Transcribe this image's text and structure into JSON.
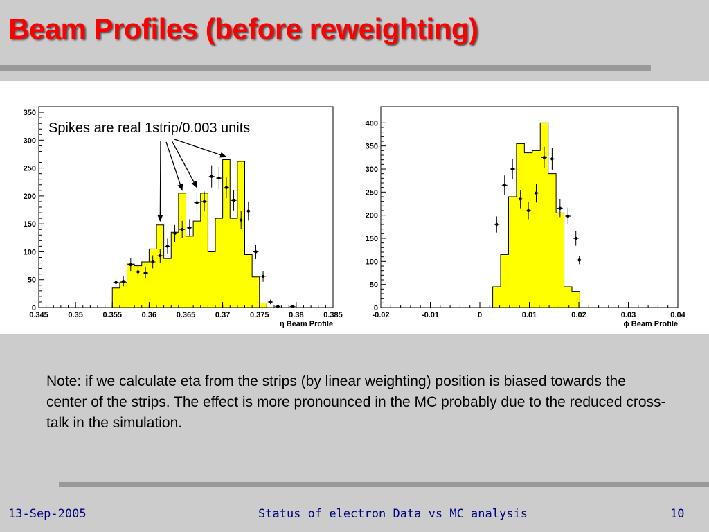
{
  "slide": {
    "title": "Beam Profiles (before reweighting)",
    "note": "Note: if we calculate eta from the strips (by linear weighting) position is biased towards the center of the strips. The effect is more pronounced in the MC probably due to the reduced cross-talk in the simulation.",
    "footer": {
      "date": "13-Sep-2005",
      "title": "Status of electron Data vs MC analysis",
      "page": "10"
    }
  },
  "colors": {
    "title": "#ff0000",
    "histogram_fill": "#ffff00",
    "footer": "#000080",
    "background": "#cccccc"
  },
  "chart_data": [
    {
      "type": "bar",
      "xlabel": "η Beam Profile",
      "annotation": "Spikes are real 1strip/0.003 units",
      "xlim": [
        0.345,
        0.385
      ],
      "ylim": [
        0,
        360
      ],
      "xticks": [
        "0.345",
        "0.35",
        "0.355",
        "0.36",
        "0.365",
        "0.37",
        "0.375",
        "0.38",
        "0.385"
      ],
      "yticks": [
        "0",
        "50",
        "100",
        "150",
        "200",
        "250",
        "300",
        "350"
      ],
      "histogram": {
        "bin_width": 0.001,
        "bin_edges_start": 0.355,
        "values": [
          35,
          45,
          78,
          75,
          82,
          105,
          148,
          88,
          135,
          205,
          128,
          155,
          205,
          100,
          160,
          265,
          160,
          262,
          95,
          55,
          8,
          0,
          0,
          0,
          0
        ]
      },
      "points": {
        "x": [
          0.3555,
          0.3565,
          0.3575,
          0.3585,
          0.3595,
          0.3605,
          0.3615,
          0.3625,
          0.3635,
          0.3645,
          0.3655,
          0.3665,
          0.3675,
          0.3685,
          0.3695,
          0.3705,
          0.3715,
          0.3725,
          0.3735,
          0.3745,
          0.3755,
          0.3765,
          0.3775,
          0.3795
        ],
        "y": [
          45,
          47,
          77,
          64,
          62,
          82,
          93,
          110,
          133,
          140,
          143,
          188,
          190,
          235,
          232,
          215,
          192,
          157,
          173,
          100,
          56,
          10,
          2,
          2
        ]
      }
    },
    {
      "type": "bar",
      "xlabel": "ϕ Beam Profile",
      "xlim": [
        -0.02,
        0.04
      ],
      "ylim": [
        0,
        435
      ],
      "xticks": [
        "-0.02",
        "-0.01",
        "0",
        "0.01",
        "0.02",
        "0.03",
        "0.04"
      ],
      "yticks": [
        "0",
        "50",
        "100",
        "150",
        "200",
        "250",
        "300",
        "350",
        "400"
      ],
      "histogram": {
        "bin_width": 0.0016,
        "bin_edges_start": 0.0026,
        "values": [
          45,
          115,
          240,
          355,
          335,
          340,
          400,
          290,
          205,
          45,
          35
        ]
      },
      "points": {
        "x": [
          0.0034,
          0.005,
          0.0066,
          0.0082,
          0.0098,
          0.0114,
          0.013,
          0.0146,
          0.0162,
          0.0178,
          0.0194
        ],
        "y": [
          180,
          265,
          300,
          235,
          210,
          248,
          325,
          322,
          215,
          198,
          150
        ]
      },
      "extra_point": {
        "x": 0.0201,
        "y": 103
      }
    }
  ]
}
